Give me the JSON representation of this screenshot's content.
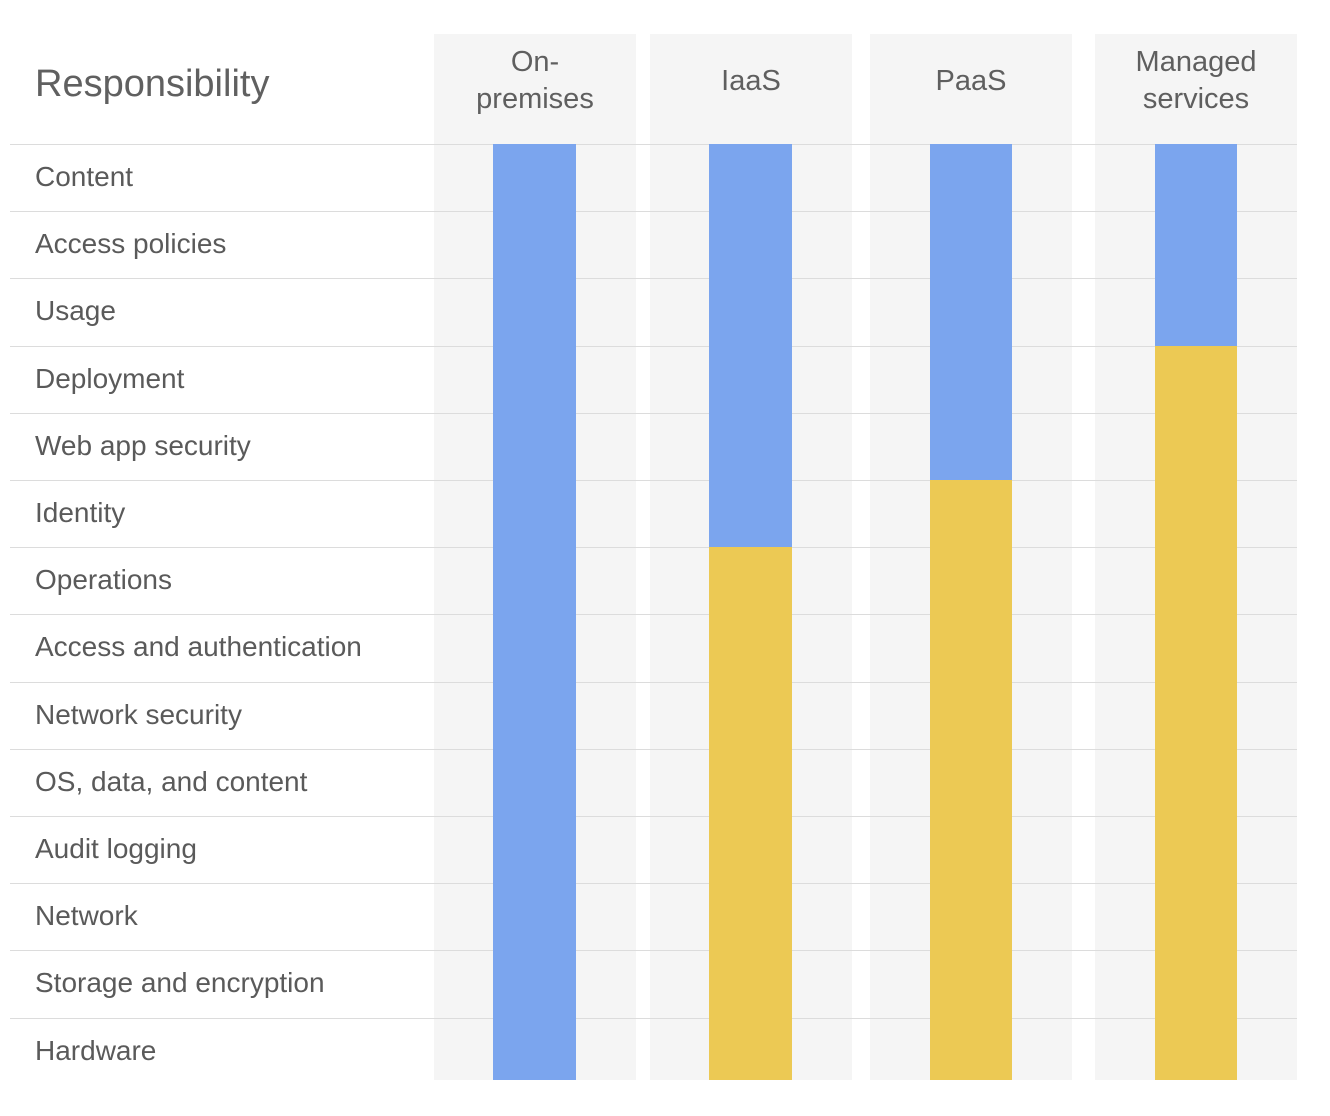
{
  "header": {
    "title": "Responsibility"
  },
  "columns": [
    {
      "key": "on_premises",
      "label": "On-\npremises",
      "customer_rows": 14
    },
    {
      "key": "iaas",
      "label": "IaaS",
      "customer_rows": 6
    },
    {
      "key": "paas",
      "label": "PaaS",
      "customer_rows": 5
    },
    {
      "key": "managed",
      "label": "Managed\nservices",
      "customer_rows": 3
    }
  ],
  "rows": [
    "Content",
    "Access policies",
    "Usage",
    "Deployment",
    "Web app security",
    "Identity",
    "Operations",
    "Access and authentication",
    "Network security",
    "OS, data, and content",
    "Audit logging",
    "Network",
    "Storage and encryption",
    "Hardware"
  ],
  "colors": {
    "customer": "#7ba5ee",
    "provider": "#ecc954",
    "column_background": "#f5f5f5",
    "divider": "#dcdcdc",
    "text": "#5f5f5f"
  }
}
